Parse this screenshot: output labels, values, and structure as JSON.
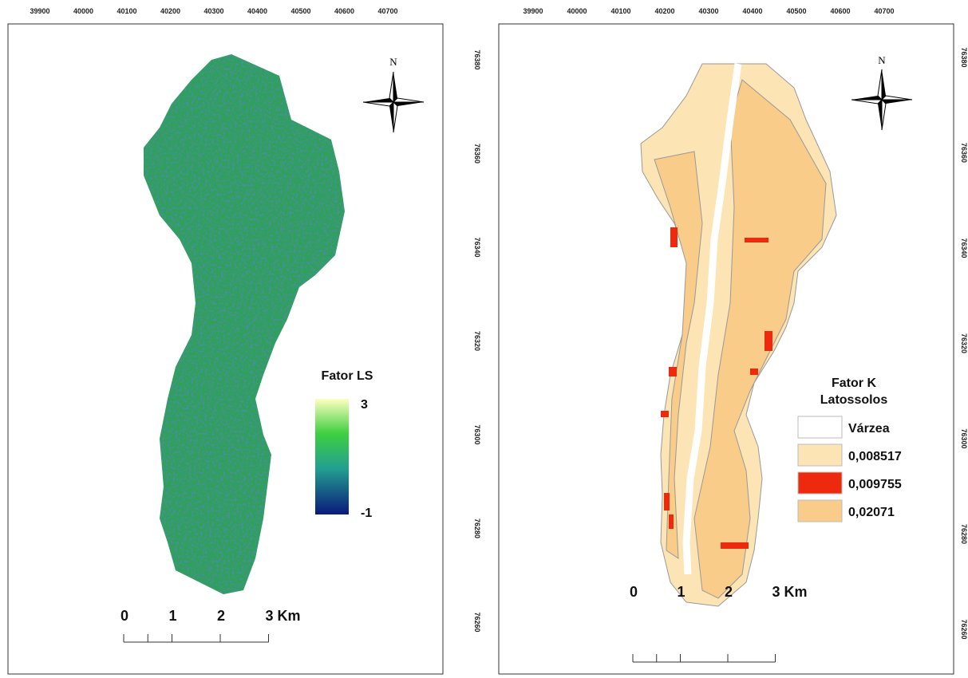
{
  "top_coordinates": [
    "39900",
    "40000",
    "40100",
    "40200",
    "40300",
    "40400",
    "40500",
    "40600",
    "40700"
  ],
  "right_coordinates": [
    "76380",
    "76360",
    "76340",
    "76320",
    "76300",
    "76280",
    "76260"
  ],
  "left_map": {
    "north": "N",
    "legend_title": "Fator LS",
    "legend_max": "3",
    "legend_min": "-1",
    "scale_labels": [
      "0",
      "1",
      "2",
      "3 Km"
    ]
  },
  "right_map": {
    "north": "N",
    "legend_title": [
      "Fator K",
      "Latossolos"
    ],
    "legend_items": [
      {
        "label": "Várzea",
        "color": "#ffffff"
      },
      {
        "label": "0,008517",
        "color": "#fce4b4"
      },
      {
        "label": "0,009755",
        "color": "#ee2a0e"
      },
      {
        "label": "0,02071",
        "color": "#f9cc8a"
      }
    ],
    "scale_labels": [
      "0",
      "1",
      "2",
      "3 Km"
    ]
  }
}
